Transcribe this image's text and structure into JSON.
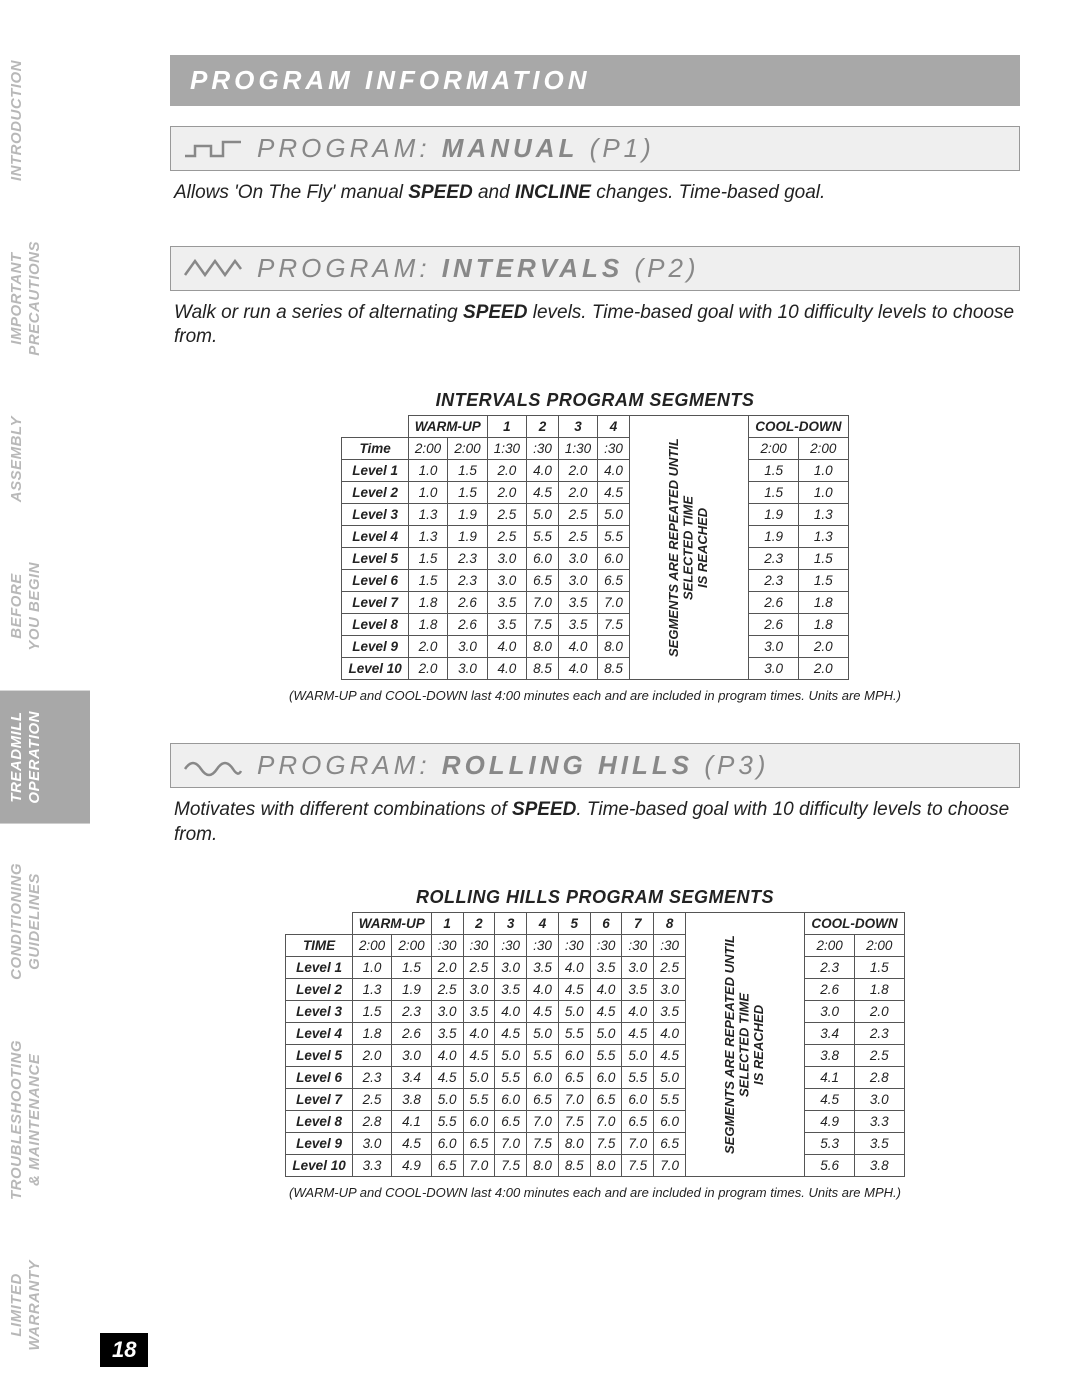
{
  "page_number": "18",
  "sidebar": {
    "tabs": [
      {
        "label": "INTRODUCTION",
        "active": false
      },
      {
        "label": "IMPORTANT\nPRECAUTIONS",
        "active": false
      },
      {
        "label": "ASSEMBLY",
        "active": false
      },
      {
        "label": "BEFORE\nYOU BEGIN",
        "active": false
      },
      {
        "label": "TREADMILL\nOPERATION",
        "active": true
      },
      {
        "label": "CONDITIONING\nGUIDELINES",
        "active": false
      },
      {
        "label": "TROUBLESHOOTING\n& MAINTENANCE",
        "active": false
      },
      {
        "label": "LIMITED\nWARRANTY",
        "active": false
      }
    ]
  },
  "banner": "PROGRAM INFORMATION",
  "programs": {
    "p1": {
      "title_pre": "PROGRAM: ",
      "title_bold": "MANUAL",
      "title_suf": " (P1)",
      "desc_parts": [
        "Allows 'On The Fly' manual ",
        "SPEED",
        " and ",
        "INCLINE",
        " changes. Time-based goal."
      ]
    },
    "p2": {
      "title_pre": "PROGRAM: ",
      "title_bold": "INTERVALS",
      "title_suf": " (P2)",
      "desc_parts": [
        "Walk or run a series of alternating ",
        "SPEED",
        " levels. Time-based goal with 10 difficulty levels to choose from."
      ]
    },
    "p3": {
      "title_pre": "PROGRAM: ",
      "title_bold": "ROLLING HILLS",
      "title_suf": " (P3)",
      "desc_parts": [
        "Motivates with different combinations of ",
        "SPEED",
        ". Time-based goal with 10 difficulty levels to choose from."
      ]
    }
  },
  "intervals_table": {
    "title": "INTERVALS PROGRAM SEGMENTS",
    "header_warmup": "WARM-UP",
    "header_segments": [
      "1",
      "2",
      "3",
      "4"
    ],
    "header_cooldown": "COOL-DOWN",
    "vertical_text": "SEGMENTS ARE REPEATED UNTIL SELECTED TIME\nIS REACHED",
    "time_row": {
      "label": "Time",
      "warmup": [
        "2:00",
        "2:00"
      ],
      "seg": [
        "1:30",
        ":30",
        "1:30",
        ":30"
      ],
      "cooldown": [
        "2:00",
        "2:00"
      ]
    },
    "rows": [
      {
        "label": "Level 1",
        "warmup": [
          "1.0",
          "1.5"
        ],
        "seg": [
          "2.0",
          "4.0",
          "2.0",
          "4.0"
        ],
        "cooldown": [
          "1.5",
          "1.0"
        ]
      },
      {
        "label": "Level 2",
        "warmup": [
          "1.0",
          "1.5"
        ],
        "seg": [
          "2.0",
          "4.5",
          "2.0",
          "4.5"
        ],
        "cooldown": [
          "1.5",
          "1.0"
        ]
      },
      {
        "label": "Level 3",
        "warmup": [
          "1.3",
          "1.9"
        ],
        "seg": [
          "2.5",
          "5.0",
          "2.5",
          "5.0"
        ],
        "cooldown": [
          "1.9",
          "1.3"
        ]
      },
      {
        "label": "Level 4",
        "warmup": [
          "1.3",
          "1.9"
        ],
        "seg": [
          "2.5",
          "5.5",
          "2.5",
          "5.5"
        ],
        "cooldown": [
          "1.9",
          "1.3"
        ]
      },
      {
        "label": "Level 5",
        "warmup": [
          "1.5",
          "2.3"
        ],
        "seg": [
          "3.0",
          "6.0",
          "3.0",
          "6.0"
        ],
        "cooldown": [
          "2.3",
          "1.5"
        ]
      },
      {
        "label": "Level 6",
        "warmup": [
          "1.5",
          "2.3"
        ],
        "seg": [
          "3.0",
          "6.5",
          "3.0",
          "6.5"
        ],
        "cooldown": [
          "2.3",
          "1.5"
        ]
      },
      {
        "label": "Level 7",
        "warmup": [
          "1.8",
          "2.6"
        ],
        "seg": [
          "3.5",
          "7.0",
          "3.5",
          "7.0"
        ],
        "cooldown": [
          "2.6",
          "1.8"
        ]
      },
      {
        "label": "Level 8",
        "warmup": [
          "1.8",
          "2.6"
        ],
        "seg": [
          "3.5",
          "7.5",
          "3.5",
          "7.5"
        ],
        "cooldown": [
          "2.6",
          "1.8"
        ]
      },
      {
        "label": "Level 9",
        "warmup": [
          "2.0",
          "3.0"
        ],
        "seg": [
          "4.0",
          "8.0",
          "4.0",
          "8.0"
        ],
        "cooldown": [
          "3.0",
          "2.0"
        ]
      },
      {
        "label": "Level 10",
        "warmup": [
          "2.0",
          "3.0"
        ],
        "seg": [
          "4.0",
          "8.5",
          "4.0",
          "8.5"
        ],
        "cooldown": [
          "3.0",
          "2.0"
        ]
      }
    ],
    "footnote": "(WARM-UP and COOL-DOWN last 4:00 minutes each and are included in program times. Units are MPH.)"
  },
  "rolling_table": {
    "title": "ROLLING HILLS PROGRAM SEGMENTS",
    "header_warmup": "WARM-UP",
    "header_segments": [
      "1",
      "2",
      "3",
      "4",
      "5",
      "6",
      "7",
      "8"
    ],
    "header_cooldown": "COOL-DOWN",
    "vertical_text": "SEGMENTS ARE REPEATED UNTIL SELECTED TIME\nIS REACHED",
    "time_row": {
      "label": "TIME",
      "warmup": [
        "2:00",
        "2:00"
      ],
      "seg": [
        ":30",
        ":30",
        ":30",
        ":30",
        ":30",
        ":30",
        ":30",
        ":30"
      ],
      "cooldown": [
        "2:00",
        "2:00"
      ]
    },
    "rows": [
      {
        "label": "Level 1",
        "warmup": [
          "1.0",
          "1.5"
        ],
        "seg": [
          "2.0",
          "2.5",
          "3.0",
          "3.5",
          "4.0",
          "3.5",
          "3.0",
          "2.5"
        ],
        "cooldown": [
          "2.3",
          "1.5"
        ]
      },
      {
        "label": "Level 2",
        "warmup": [
          "1.3",
          "1.9"
        ],
        "seg": [
          "2.5",
          "3.0",
          "3.5",
          "4.0",
          "4.5",
          "4.0",
          "3.5",
          "3.0"
        ],
        "cooldown": [
          "2.6",
          "1.8"
        ]
      },
      {
        "label": "Level 3",
        "warmup": [
          "1.5",
          "2.3"
        ],
        "seg": [
          "3.0",
          "3.5",
          "4.0",
          "4.5",
          "5.0",
          "4.5",
          "4.0",
          "3.5"
        ],
        "cooldown": [
          "3.0",
          "2.0"
        ]
      },
      {
        "label": "Level 4",
        "warmup": [
          "1.8",
          "2.6"
        ],
        "seg": [
          "3.5",
          "4.0",
          "4.5",
          "5.0",
          "5.5",
          "5.0",
          "4.5",
          "4.0"
        ],
        "cooldown": [
          "3.4",
          "2.3"
        ]
      },
      {
        "label": "Level 5",
        "warmup": [
          "2.0",
          "3.0"
        ],
        "seg": [
          "4.0",
          "4.5",
          "5.0",
          "5.5",
          "6.0",
          "5.5",
          "5.0",
          "4.5"
        ],
        "cooldown": [
          "3.8",
          "2.5"
        ]
      },
      {
        "label": "Level 6",
        "warmup": [
          "2.3",
          "3.4"
        ],
        "seg": [
          "4.5",
          "5.0",
          "5.5",
          "6.0",
          "6.5",
          "6.0",
          "5.5",
          "5.0"
        ],
        "cooldown": [
          "4.1",
          "2.8"
        ]
      },
      {
        "label": "Level 7",
        "warmup": [
          "2.5",
          "3.8"
        ],
        "seg": [
          "5.0",
          "5.5",
          "6.0",
          "6.5",
          "7.0",
          "6.5",
          "6.0",
          "5.5"
        ],
        "cooldown": [
          "4.5",
          "3.0"
        ]
      },
      {
        "label": "Level 8",
        "warmup": [
          "2.8",
          "4.1"
        ],
        "seg": [
          "5.5",
          "6.0",
          "6.5",
          "7.0",
          "7.5",
          "7.0",
          "6.5",
          "6.0"
        ],
        "cooldown": [
          "4.9",
          "3.3"
        ]
      },
      {
        "label": "Level 9",
        "warmup": [
          "3.0",
          "4.5"
        ],
        "seg": [
          "6.0",
          "6.5",
          "7.0",
          "7.5",
          "8.0",
          "7.5",
          "7.0",
          "6.5"
        ],
        "cooldown": [
          "5.3",
          "3.5"
        ]
      },
      {
        "label": "Level 10",
        "warmup": [
          "3.3",
          "4.9"
        ],
        "seg": [
          "6.5",
          "7.0",
          "7.5",
          "8.0",
          "8.5",
          "8.0",
          "7.5",
          "7.0"
        ],
        "cooldown": [
          "5.6",
          "3.8"
        ]
      }
    ],
    "footnote": "(WARM-UP and COOL-DOWN last 4:00 minutes each and are included in program times. Units are MPH.)"
  },
  "colors": {
    "banner_bg": "#a8a8a8",
    "program_bg": "#efefef",
    "tab_inactive": "#b8b8b8",
    "tab_active_bg": "#a8a8a8",
    "border": "#555555"
  }
}
